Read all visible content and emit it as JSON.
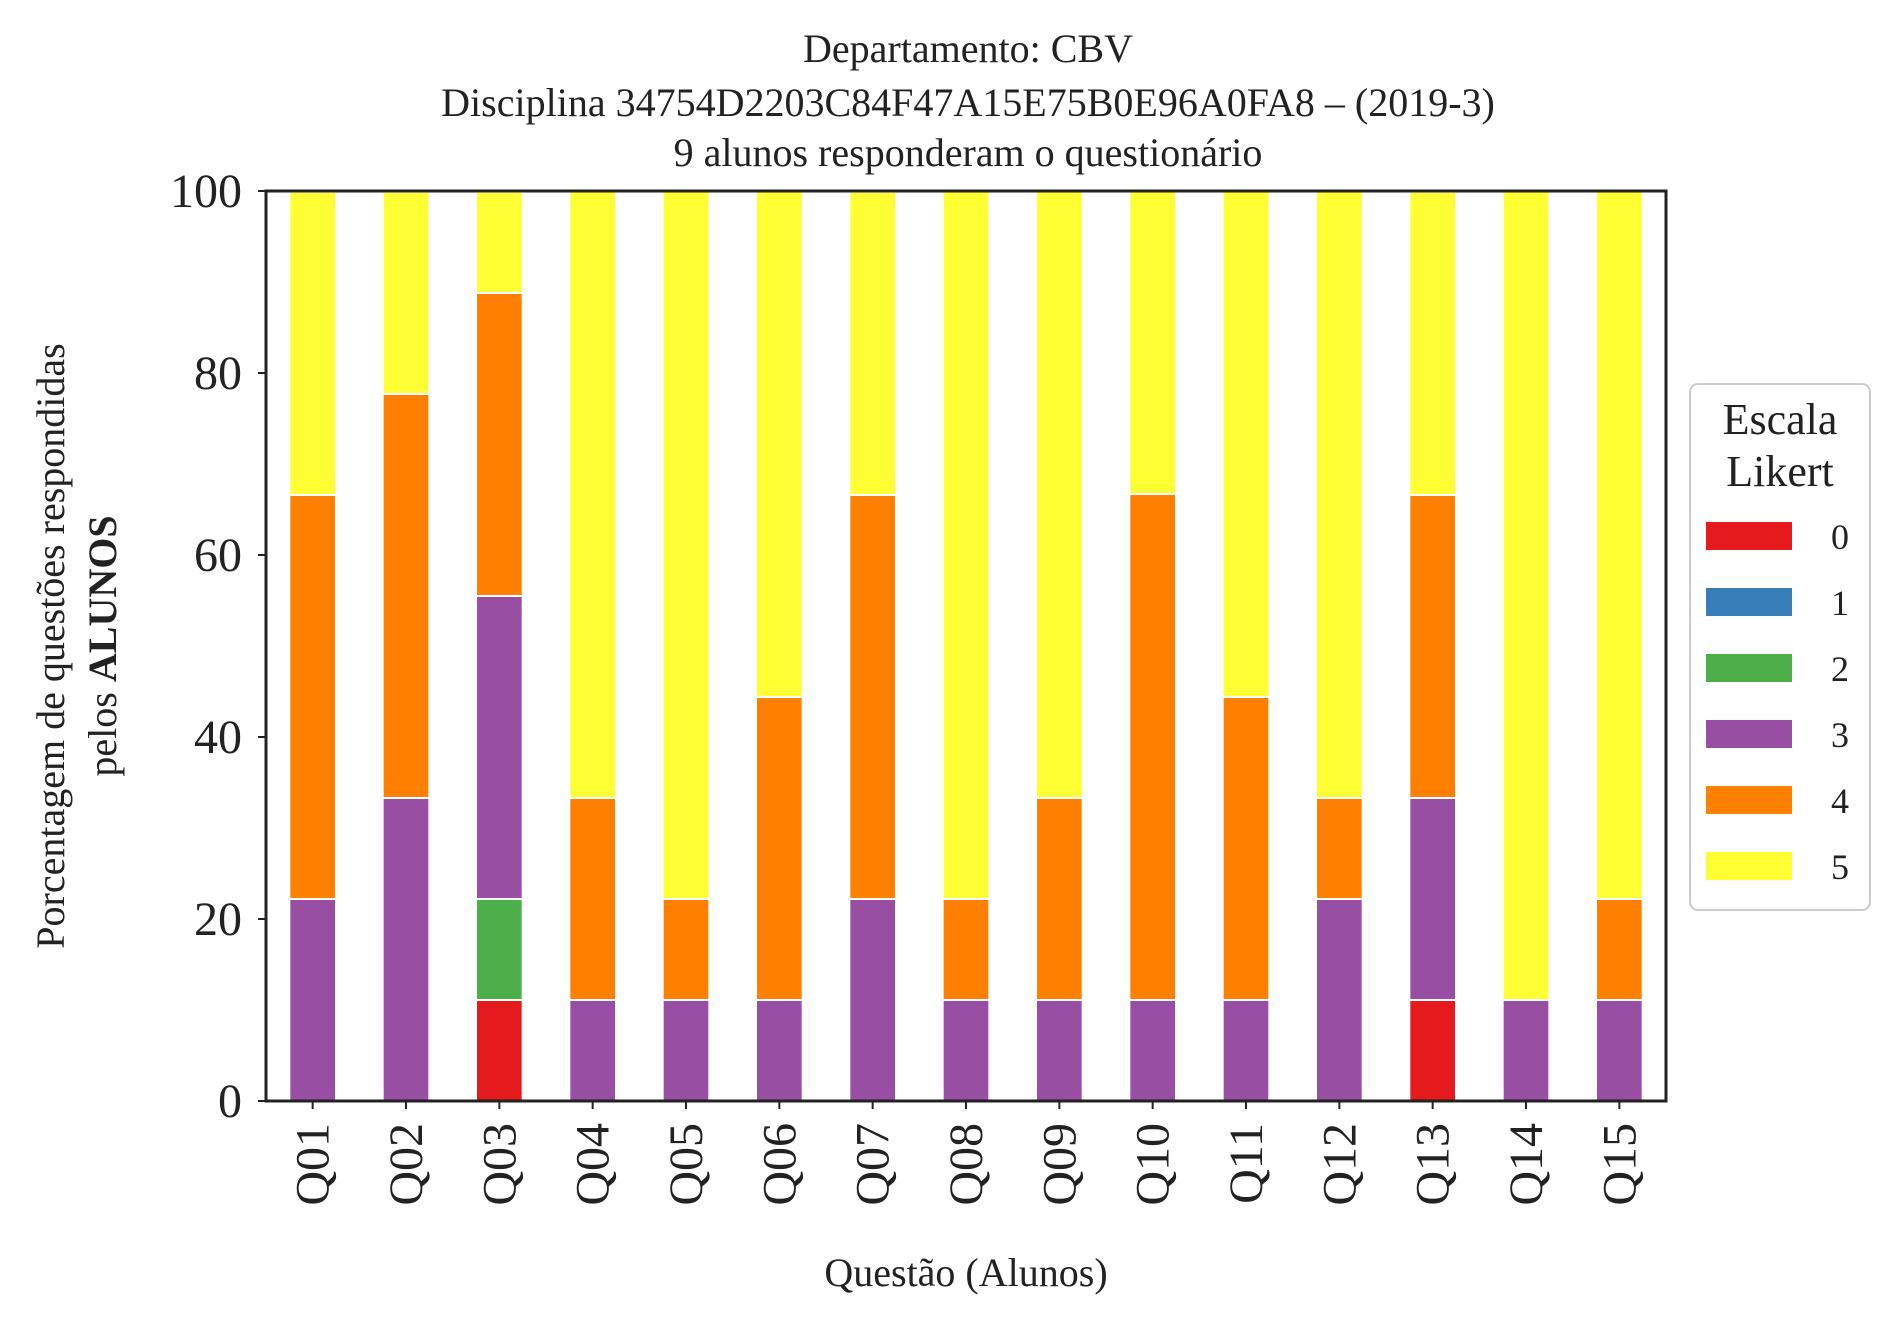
{
  "chart_data": {
    "type": "bar",
    "stacked": true,
    "title_lines": [
      "Departamento: CBV",
      "Disciplina 34754D2203C84F47A15E75B0E96A0FA8 – (2019-3)",
      "9 alunos responderam o questionário"
    ],
    "xlabel": "Questão (Alunos)",
    "ylabel_line1": "Porcentagem de questões respondidas",
    "ylabel_line2_prefix": "pelos ",
    "ylabel_line2_bold": "ALUNOS",
    "ylim": [
      0,
      100
    ],
    "yticks": [
      "0",
      "20",
      "40",
      "60",
      "80",
      "100"
    ],
    "grid": false,
    "legend_title_lines": [
      "Escala",
      "Likert"
    ],
    "legend_position": "right",
    "categories": [
      "Q01",
      "Q02",
      "Q03",
      "Q04",
      "Q05",
      "Q06",
      "Q07",
      "Q08",
      "Q09",
      "Q10",
      "Q11",
      "Q12",
      "Q13",
      "Q14",
      "Q15"
    ],
    "series": [
      {
        "name": "0",
        "color": "#e41a1c",
        "values": [
          0,
          0,
          11.1,
          0,
          0,
          0,
          0,
          0,
          0,
          0,
          0,
          0,
          11.1,
          0,
          0
        ]
      },
      {
        "name": "1",
        "color": "#377eb8",
        "values": [
          0,
          0,
          0,
          0,
          0,
          0,
          0,
          0,
          0,
          0,
          0,
          0,
          0,
          0,
          0
        ]
      },
      {
        "name": "2",
        "color": "#4daf4a",
        "values": [
          0,
          0,
          11.1,
          0,
          0,
          0,
          0,
          0,
          0,
          0,
          0,
          0,
          0,
          0,
          0
        ]
      },
      {
        "name": "3",
        "color": "#984ea3",
        "values": [
          22.2,
          33.3,
          33.3,
          11.1,
          11.1,
          11.1,
          22.2,
          11.1,
          11.1,
          11.1,
          11.1,
          22.2,
          22.2,
          11.1,
          11.1
        ]
      },
      {
        "name": "4",
        "color": "#ff7f00",
        "values": [
          44.4,
          44.4,
          33.3,
          22.2,
          11.1,
          33.3,
          44.4,
          11.1,
          22.2,
          55.6,
          33.3,
          11.1,
          33.3,
          0,
          11.1
        ]
      },
      {
        "name": "5",
        "color": "#ffff33",
        "values": [
          33.3,
          22.2,
          11.1,
          66.7,
          77.8,
          55.6,
          33.3,
          77.8,
          66.7,
          33.3,
          55.6,
          66.7,
          33.3,
          88.9,
          77.8
        ]
      }
    ]
  }
}
